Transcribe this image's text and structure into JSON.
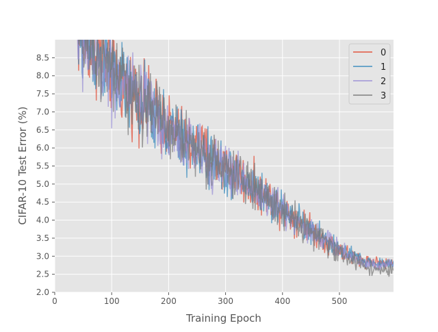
{
  "chart_data": {
    "type": "line",
    "title": "",
    "xlabel": "Training Epoch",
    "ylabel": "CIFAR-10 Test Error (%)",
    "xlim": [
      0,
      595
    ],
    "ylim": [
      2.0,
      9.0
    ],
    "x_ticks": [
      0,
      100,
      200,
      300,
      400,
      500
    ],
    "y_ticks": [
      2.0,
      2.5,
      3.0,
      3.5,
      4.0,
      4.5,
      5.0,
      5.5,
      6.0,
      6.5,
      7.0,
      7.5,
      8.0,
      8.5
    ],
    "grid": true,
    "legend_position": "top-right",
    "series": [
      {
        "name": "0",
        "color": "#E24A33",
        "x": [
          40,
          60,
          80,
          100,
          120,
          140,
          160,
          180,
          200,
          220,
          240,
          260,
          280,
          300,
          320,
          340,
          360,
          380,
          400,
          420,
          440,
          460,
          480,
          500,
          520,
          540,
          560,
          580,
          595
        ],
        "y": [
          9.2,
          8.9,
          8.6,
          8.1,
          7.8,
          7.5,
          7.2,
          6.9,
          6.6,
          6.3,
          6.1,
          5.9,
          5.7,
          5.5,
          5.3,
          5.0,
          4.8,
          4.6,
          4.3,
          4.1,
          3.9,
          3.6,
          3.4,
          3.2,
          3.0,
          2.9,
          2.85,
          2.8,
          2.8
        ]
      },
      {
        "name": "1",
        "color": "#348ABD",
        "x": [
          40,
          60,
          80,
          100,
          120,
          140,
          160,
          180,
          200,
          220,
          240,
          260,
          280,
          300,
          320,
          340,
          360,
          380,
          400,
          420,
          440,
          460,
          480,
          500,
          520,
          540,
          560,
          580,
          595
        ],
        "y": [
          9.1,
          8.8,
          8.5,
          8.1,
          7.7,
          7.4,
          7.1,
          6.8,
          6.5,
          6.3,
          6.0,
          5.8,
          5.6,
          5.4,
          5.2,
          5.0,
          4.8,
          4.5,
          4.3,
          4.1,
          3.8,
          3.6,
          3.4,
          3.2,
          3.0,
          2.9,
          2.8,
          2.8,
          2.8
        ]
      },
      {
        "name": "2",
        "color": "#988ED5",
        "x": [
          40,
          60,
          80,
          100,
          120,
          140,
          160,
          180,
          200,
          220,
          240,
          260,
          280,
          300,
          320,
          340,
          360,
          380,
          400,
          420,
          440,
          460,
          480,
          500,
          520,
          540,
          560,
          580,
          595
        ],
        "y": [
          9.0,
          8.7,
          8.4,
          8.0,
          7.7,
          7.4,
          7.1,
          6.8,
          6.5,
          6.2,
          6.0,
          5.8,
          5.6,
          5.4,
          5.2,
          5.0,
          4.7,
          4.5,
          4.3,
          4.0,
          3.8,
          3.6,
          3.4,
          3.2,
          3.0,
          2.85,
          2.75,
          2.75,
          2.75
        ]
      },
      {
        "name": "3",
        "color": "#777777",
        "x": [
          40,
          60,
          80,
          100,
          120,
          140,
          160,
          180,
          200,
          220,
          240,
          260,
          280,
          300,
          320,
          340,
          360,
          380,
          400,
          420,
          440,
          460,
          480,
          500,
          520,
          540,
          560,
          580,
          595
        ],
        "y": [
          9.1,
          8.8,
          8.5,
          8.1,
          7.8,
          7.5,
          7.2,
          6.9,
          6.6,
          6.3,
          6.1,
          5.9,
          5.6,
          5.4,
          5.2,
          5.0,
          4.8,
          4.5,
          4.3,
          4.1,
          3.8,
          3.6,
          3.3,
          3.1,
          2.9,
          2.75,
          2.65,
          2.6,
          2.6
        ]
      }
    ]
  }
}
